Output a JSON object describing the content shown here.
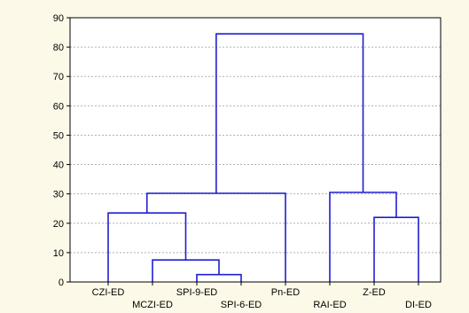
{
  "chart_data": {
    "type": "dendrogram",
    "title": "",
    "xlabel": "",
    "ylabel": "",
    "ylim": [
      0,
      90
    ],
    "y_ticks": [
      0,
      10,
      20,
      30,
      40,
      50,
      60,
      70,
      80,
      90
    ],
    "grid": true,
    "leaves": [
      "CZI-ED",
      "MCZI-ED",
      "SPI-9-ED",
      "SPI-6-ED",
      "Pn-ED",
      "RAI-ED",
      "Z-ED",
      "DI-ED"
    ],
    "merges": [
      {
        "left": "SPI-9-ED",
        "right": "SPI-6-ED",
        "height": 2.5
      },
      {
        "left": "MCZI-ED",
        "right": "SPI-9-ED + SPI-6-ED",
        "height": 7.5
      },
      {
        "left": "CZI-ED",
        "right": "MCZI-ED + SPI-9-ED + SPI-6-ED",
        "height": 23.5
      },
      {
        "left": "CZI-ED + MCZI-ED + SPI-9-ED + SPI-6-ED",
        "right": "Pn-ED",
        "height": 30.2
      },
      {
        "left": "Z-ED",
        "right": "DI-ED",
        "height": 22
      },
      {
        "left": "RAI-ED",
        "right": "Z-ED + DI-ED",
        "height": 30.5
      },
      {
        "left": "CZI-ED + MCZI-ED + SPI-9-ED + SPI-6-ED + Pn-ED",
        "right": "RAI-ED + Z-ED + DI-ED",
        "height": 84.5
      }
    ],
    "colors": {
      "line": "#1f1fd1",
      "grid": "#b0b0b0",
      "plot_bg": "#ffffff",
      "page_bg": "#fdf9e8"
    }
  }
}
